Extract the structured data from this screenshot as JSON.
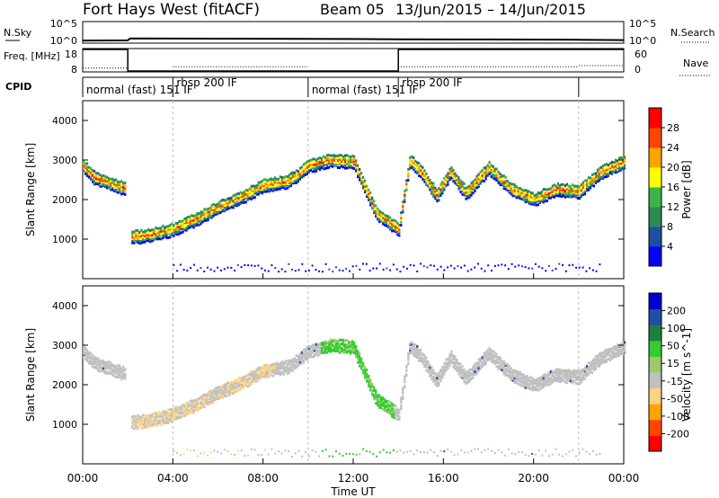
{
  "header": {
    "station": "Fort Hays West (fitACF)",
    "beam": "Beam 05",
    "dates": "13/Jun/2015 – 14/Jun/2015"
  },
  "colors": {
    "power": [
      "#0000ff",
      "#1e4fa5",
      "#2e8b57",
      "#3cb44b",
      "#ffff00",
      "#ffa500",
      "#ff4500",
      "#ff0000"
    ],
    "velocity": [
      "#ff0000",
      "#ff4500",
      "#ffa500",
      "#ffd27f",
      "#c0c0c0",
      "#99cc66",
      "#33cc33",
      "#1f7f3f",
      "#1e4fa5",
      "#0000cc"
    ]
  },
  "chart_data": [
    {
      "type": "line",
      "name": "nsky-nsearch-panel",
      "left_label": "N.Sky",
      "left_ticks": [
        "10^5",
        "10^0"
      ],
      "right_label": "N.Search",
      "right_ticks": [
        "10^5",
        "10^0"
      ],
      "x": [
        0,
        2,
        2.1,
        6,
        10,
        12,
        14,
        18,
        22,
        24
      ],
      "nsky_log": [
        0.6,
        0.65,
        1.1,
        1.05,
        1.0,
        0.95,
        0.9,
        0.85,
        0.8,
        0.7
      ]
    },
    {
      "type": "line",
      "name": "freq-nave-panel",
      "left_label": "Freq. [MHz]",
      "left_ticks": [
        "18",
        "8"
      ],
      "right_label": "Nave",
      "right_ticks": [
        "60",
        "0"
      ],
      "freq_steps": [
        [
          0,
          2,
          18
        ],
        [
          2,
          14,
          8
        ],
        [
          14,
          24,
          18
        ]
      ],
      "nave_steps": [
        [
          0,
          2,
          8
        ],
        [
          4,
          10,
          12
        ],
        [
          14,
          22,
          12
        ],
        [
          22,
          24,
          15
        ]
      ]
    },
    {
      "type": "table",
      "name": "cpid-strip",
      "label": "CPID",
      "segments": [
        {
          "start": 0,
          "end": 4,
          "label": "normal (fast) 151 IF"
        },
        {
          "start": 4,
          "end": 10,
          "label": "rbsp 200 IF"
        },
        {
          "start": 10,
          "end": 14,
          "label": "normal (fast) 151 IF"
        },
        {
          "start": 14,
          "end": 22,
          "label": "rbsp 200 IF"
        }
      ]
    },
    {
      "type": "heatmap",
      "name": "power-panel",
      "ylabel": "Slant Range [km]",
      "ylim": [
        0,
        4500
      ],
      "y_ticks": [
        1000,
        2000,
        3000,
        4000
      ],
      "colorbar_label": "Power [dB]",
      "colorbar_ticks": [
        "28",
        "24",
        "20",
        "16",
        "12",
        "8",
        "4"
      ],
      "band_x": [
        0,
        0.5,
        1,
        1.5,
        2,
        2.1,
        3,
        4,
        5,
        6,
        7,
        8,
        9,
        9.5,
        10,
        11,
        12,
        13,
        14,
        14.5,
        15,
        15.7,
        16.3,
        17,
        18,
        19,
        20,
        21,
        22,
        23,
        24
      ],
      "band_y": [
        2900,
        2600,
        2500,
        2400,
        2300,
        1100,
        1150,
        1300,
        1550,
        1850,
        2100,
        2400,
        2500,
        2650,
        2900,
        3050,
        3000,
        1700,
        1300,
        3050,
        2750,
        2150,
        2750,
        2200,
        2850,
        2300,
        2050,
        2300,
        2250,
        2750,
        3000
      ]
    },
    {
      "type": "heatmap",
      "name": "velocity-panel",
      "ylabel": "Slant Range [km]",
      "ylim": [
        0,
        4500
      ],
      "y_ticks": [
        1000,
        2000,
        3000,
        4000
      ],
      "colorbar_label": "Velocity [m s^-1]",
      "colorbar_ticks": [
        "200",
        "100",
        "50",
        "15",
        "-15",
        "-50",
        "-100",
        "-200"
      ],
      "band_x": [
        0,
        0.5,
        1,
        1.5,
        2,
        2.1,
        3,
        4,
        5,
        6,
        7,
        8,
        9,
        9.5,
        10,
        11,
        12,
        13,
        14,
        14.5,
        15,
        15.7,
        16.3,
        17,
        18,
        19,
        20,
        21,
        22,
        23,
        24
      ],
      "band_y": [
        2900,
        2600,
        2500,
        2400,
        2300,
        1100,
        1150,
        1300,
        1550,
        1850,
        2100,
        2400,
        2500,
        2650,
        2900,
        3050,
        3000,
        1700,
        1300,
        3050,
        2750,
        2150,
        2750,
        2200,
        2850,
        2300,
        2050,
        2300,
        2250,
        2750,
        3000
      ],
      "x_ticks": [
        "00:00",
        "04:00",
        "08:00",
        "12:00",
        "16:00",
        "20:00",
        "00:00"
      ],
      "xlabel": "Time UT"
    }
  ]
}
